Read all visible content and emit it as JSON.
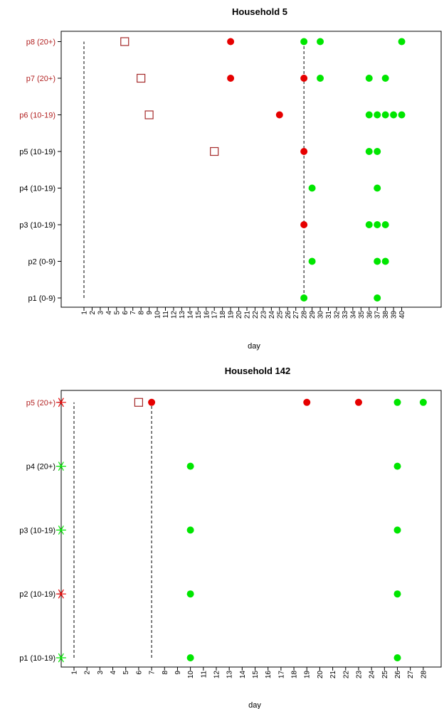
{
  "colors": {
    "red": "#e60000",
    "green": "#00e600",
    "square": "#a52a2a",
    "label_red": "#b22222",
    "label_black": "#000000",
    "axis": "#000000"
  },
  "chart_data": [
    {
      "type": "scatter",
      "title": "Household 5",
      "xlabel": "day",
      "x_ticks": [
        "1",
        "2",
        "3",
        "4",
        "5",
        "6",
        "7",
        "8",
        "9",
        "10",
        "11",
        "12",
        "13",
        "14",
        "15",
        "16",
        "17",
        "18",
        "19",
        "20",
        "21",
        "22",
        "23",
        "24",
        "25",
        "26",
        "27",
        "28",
        "29",
        "30",
        "31",
        "32",
        "33",
        "34",
        "35",
        "36",
        "37",
        "38",
        "39",
        "40"
      ],
      "xlim": [
        1,
        40
      ],
      "people": [
        {
          "label": "p1 (0-9)",
          "label_color": "black"
        },
        {
          "label": "p2 (0-9)",
          "label_color": "black"
        },
        {
          "label": "p3 (10-19)",
          "label_color": "black"
        },
        {
          "label": "p4 (10-19)",
          "label_color": "black"
        },
        {
          "label": "p5 (10-19)",
          "label_color": "black"
        },
        {
          "label": "p6 (10-19)",
          "label_color": "red"
        },
        {
          "label": "p7 (20+)",
          "label_color": "red"
        },
        {
          "label": "p8 (20+)",
          "label_color": "red"
        }
      ],
      "series": [
        {
          "marker": "square",
          "color": "square",
          "points": [
            [
              6,
              8
            ],
            [
              8,
              7
            ],
            [
              9,
              6
            ],
            [
              17,
              5
            ]
          ]
        },
        {
          "marker": "dot",
          "color": "red",
          "points": [
            [
              19,
              8
            ],
            [
              19,
              7
            ],
            [
              25,
              6
            ],
            [
              28,
              7
            ],
            [
              28,
              5
            ],
            [
              28,
              3
            ]
          ]
        },
        {
          "marker": "dot",
          "color": "green",
          "points": [
            [
              28,
              8
            ],
            [
              30,
              8
            ],
            [
              40,
              8
            ],
            [
              30,
              7
            ],
            [
              36,
              7
            ],
            [
              38,
              7
            ],
            [
              36,
              6
            ],
            [
              37,
              6
            ],
            [
              38,
              6
            ],
            [
              39,
              6
            ],
            [
              40,
              6
            ],
            [
              36,
              5
            ],
            [
              37,
              5
            ],
            [
              29,
              4
            ],
            [
              37,
              4
            ],
            [
              36,
              3
            ],
            [
              37,
              3
            ],
            [
              38,
              3
            ],
            [
              29,
              2
            ],
            [
              37,
              2
            ],
            [
              38,
              2
            ],
            [
              28,
              1
            ],
            [
              37,
              1
            ]
          ]
        }
      ],
      "vlines": [
        {
          "x": 1,
          "y_from": 1,
          "y_to": 8
        },
        {
          "x": 28,
          "y_from": 1,
          "y_to": 8
        }
      ]
    },
    {
      "type": "scatter",
      "title": "Household 142",
      "xlabel": "day",
      "x_ticks": [
        "1",
        "2",
        "3",
        "4",
        "5",
        "6",
        "7",
        "8",
        "9",
        "10",
        "11",
        "12",
        "13",
        "14",
        "15",
        "16",
        "17",
        "18",
        "19",
        "20",
        "21",
        "22",
        "23",
        "24",
        "25",
        "26",
        "27",
        "28"
      ],
      "xlim": [
        0,
        28
      ],
      "people": [
        {
          "label": "p1 (10-19)",
          "label_color": "black"
        },
        {
          "label": "p2 (10-19)",
          "label_color": "black"
        },
        {
          "label": "p3 (10-19)",
          "label_color": "black"
        },
        {
          "label": "p4 (20+)",
          "label_color": "black"
        },
        {
          "label": "p5 (20+)",
          "label_color": "red"
        }
      ],
      "series": [
        {
          "marker": "star",
          "color": "green",
          "points": [
            [
              0,
              1
            ],
            [
              0,
              3
            ],
            [
              0,
              4
            ]
          ]
        },
        {
          "marker": "star",
          "color": "red",
          "points": [
            [
              0,
              2
            ],
            [
              0,
              5
            ]
          ]
        },
        {
          "marker": "square",
          "color": "square",
          "points": [
            [
              6,
              5
            ]
          ]
        },
        {
          "marker": "dot",
          "color": "red",
          "points": [
            [
              7,
              5
            ],
            [
              19,
              5
            ],
            [
              23,
              5
            ]
          ]
        },
        {
          "marker": "dot",
          "color": "green",
          "points": [
            [
              26,
              5
            ],
            [
              28,
              5
            ],
            [
              10,
              4
            ],
            [
              26,
              4
            ],
            [
              10,
              3
            ],
            [
              26,
              3
            ],
            [
              10,
              2
            ],
            [
              26,
              2
            ],
            [
              10,
              1
            ],
            [
              26,
              1
            ]
          ]
        }
      ],
      "vlines": [
        {
          "x": 1,
          "y_from": 1,
          "y_to": 5
        },
        {
          "x": 7,
          "y_from": 1,
          "y_to": 5
        }
      ]
    }
  ]
}
